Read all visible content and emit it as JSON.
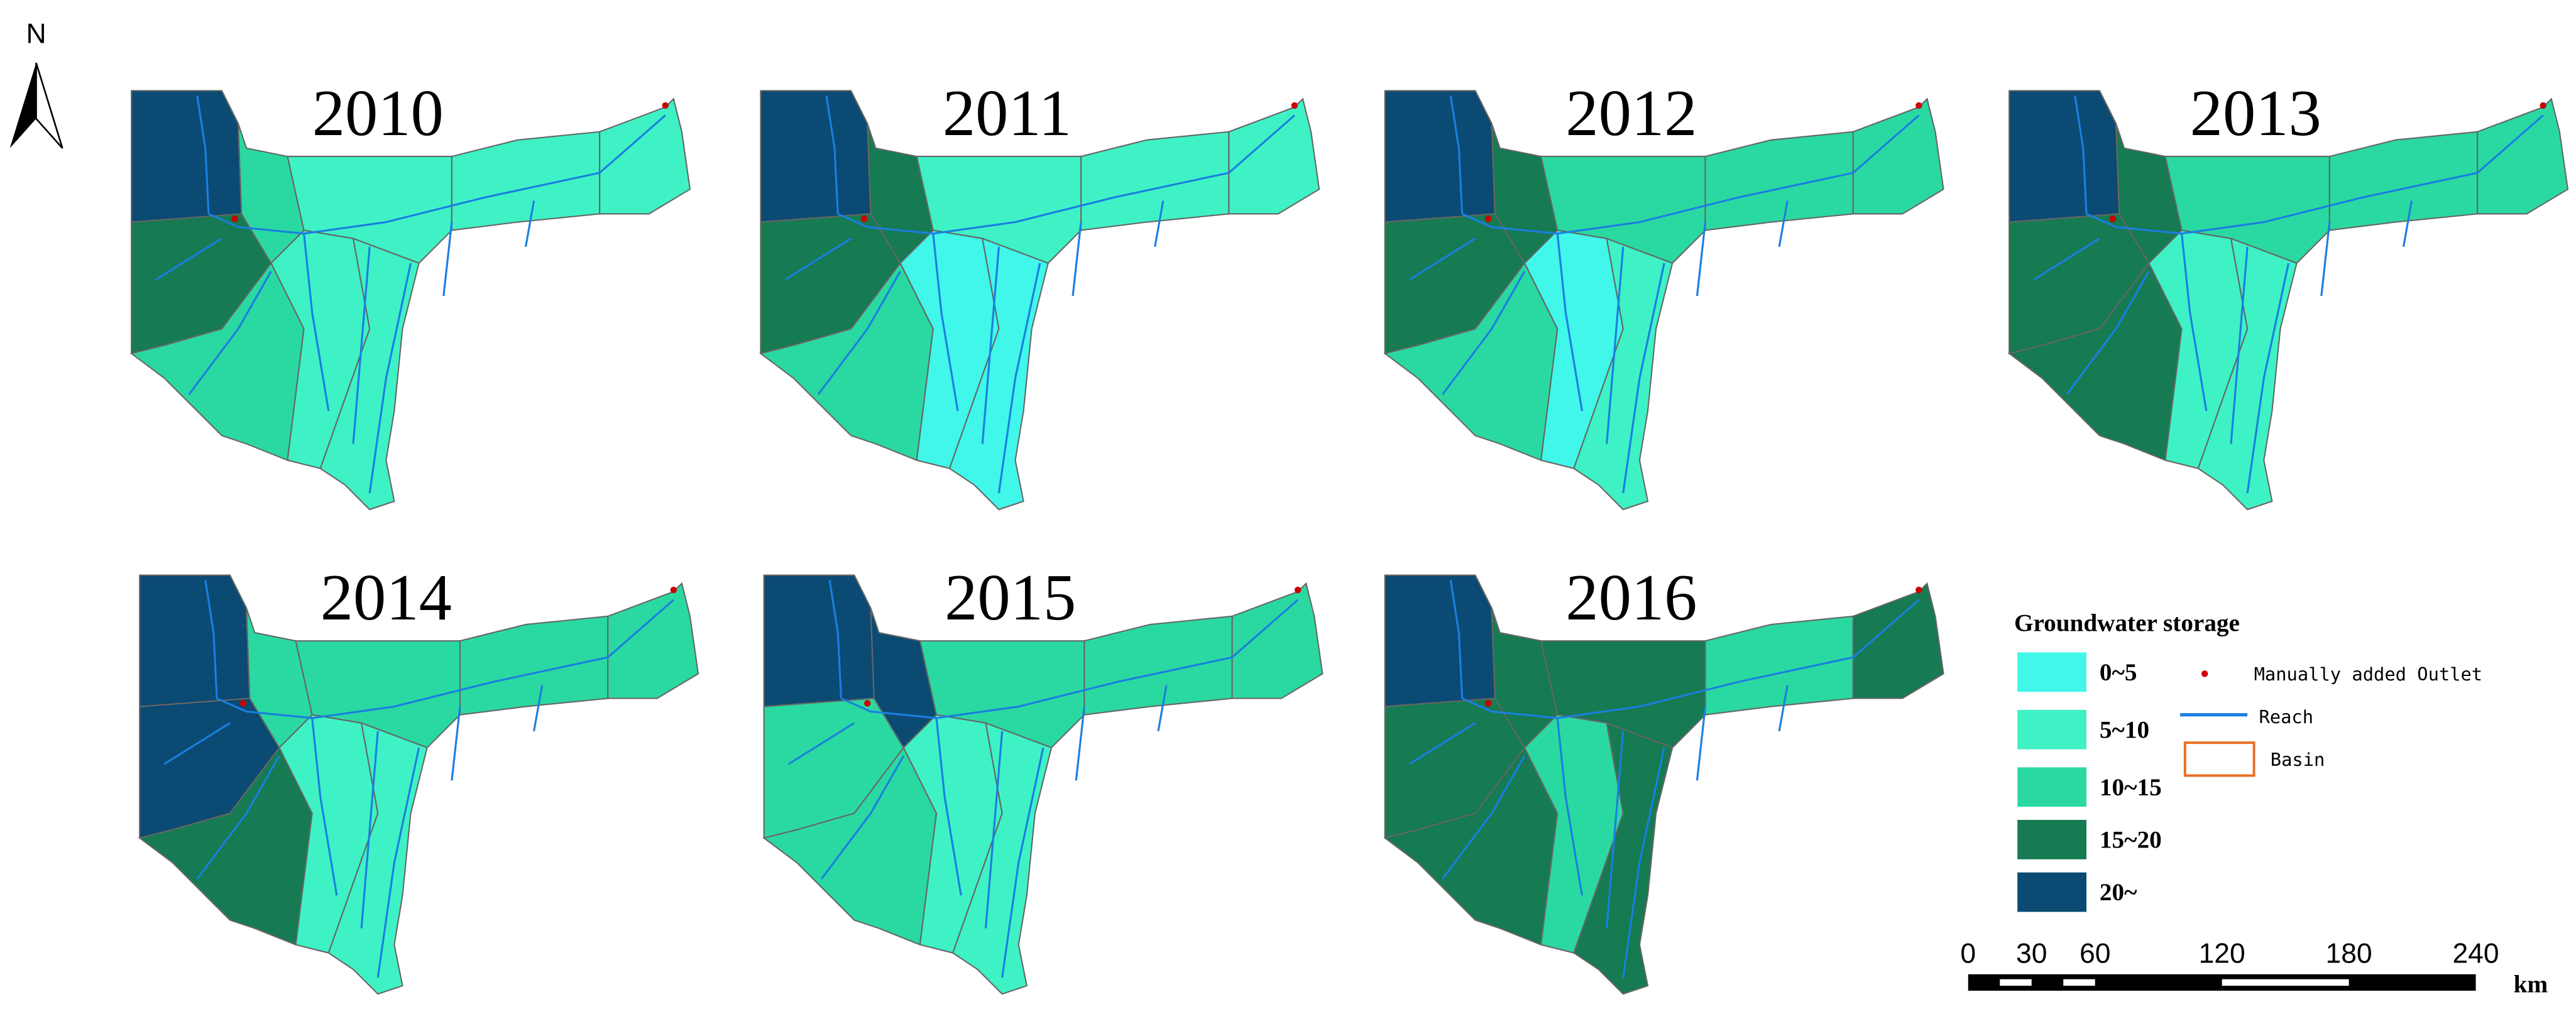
{
  "north": "N",
  "panels": [
    {
      "title": "2010"
    },
    {
      "title": "2011"
    },
    {
      "title": "2012"
    },
    {
      "title": "2013"
    },
    {
      "title": "2014"
    },
    {
      "title": "2015"
    },
    {
      "title": "2016"
    }
  ],
  "legend": {
    "title": "Groundwater storage",
    "classes": [
      {
        "label": "0~5",
        "color": "#40f7ea"
      },
      {
        "label": "5~10",
        "color": "#3ef2c6"
      },
      {
        "label": "10~15",
        "color": "#2ad9a2"
      },
      {
        "label": "15~20",
        "color": "#167a52"
      },
      {
        "label": "20~",
        "color": "#0b4a72"
      }
    ],
    "symbols": {
      "outlet": "Manually added Outlet",
      "reach": "Reach",
      "basin": "Basin"
    }
  },
  "scale_bar": {
    "ticks": [
      0,
      30,
      60,
      120,
      180,
      240
    ],
    "unit": "km"
  }
}
